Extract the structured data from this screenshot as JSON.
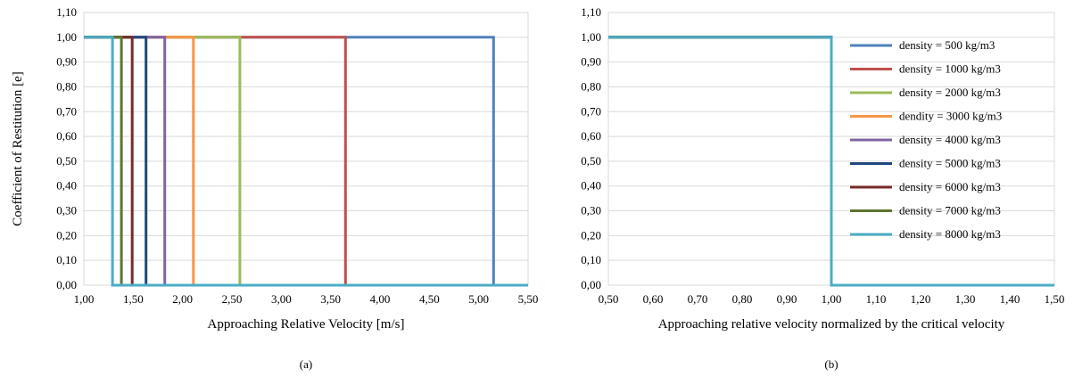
{
  "chart_data": [
    {
      "type": "line",
      "panel_label": "(a)",
      "xlabel": "Approaching Relative Velocity [m/s]",
      "ylabel": "Coefficient of Restitution [e]",
      "xlim": [
        1.0,
        5.5
      ],
      "ylim": [
        0.0,
        1.1
      ],
      "xticks": [
        "1,00",
        "1,50",
        "2,00",
        "2,50",
        "3,00",
        "3,50",
        "4,00",
        "4,50",
        "5,00",
        "5,50"
      ],
      "yticks": [
        "0,00",
        "0,10",
        "0,20",
        "0,30",
        "0,40",
        "0,50",
        "0,60",
        "0,70",
        "0,80",
        "0,90",
        "1,00",
        "1,10"
      ],
      "grid": "horizontal",
      "legend": "none",
      "series": [
        {
          "name": "density = 500 kg/m3",
          "color": "#4f81bd",
          "x": [
            1.0,
            5.15,
            5.15,
            5.5
          ],
          "y": [
            1.0,
            1.0,
            0.0,
            0.0
          ]
        },
        {
          "name": "density = 1000 kg/m3",
          "color": "#c0504d",
          "x": [
            1.0,
            3.65,
            3.65,
            5.5
          ],
          "y": [
            1.0,
            1.0,
            0.0,
            0.0
          ]
        },
        {
          "name": "density = 2000 kg/m3",
          "color": "#9bbb59",
          "x": [
            1.0,
            2.58,
            2.58,
            5.5
          ],
          "y": [
            1.0,
            1.0,
            0.0,
            0.0
          ]
        },
        {
          "name": "dendity = 3000 kg/m3",
          "color": "#f79646",
          "x": [
            1.0,
            2.11,
            2.11,
            5.5
          ],
          "y": [
            1.0,
            1.0,
            0.0,
            0.0
          ]
        },
        {
          "name": "density = 4000 kg/m3",
          "color": "#8064a2",
          "x": [
            1.0,
            1.82,
            1.82,
            5.5
          ],
          "y": [
            1.0,
            1.0,
            0.0,
            0.0
          ]
        },
        {
          "name": "density = 5000 kg/m3",
          "color": "#1f497d",
          "x": [
            1.0,
            1.63,
            1.63,
            5.5
          ],
          "y": [
            1.0,
            1.0,
            0.0,
            0.0
          ]
        },
        {
          "name": "density = 6000 kg/m3",
          "color": "#772c2a",
          "x": [
            1.0,
            1.49,
            1.49,
            5.5
          ],
          "y": [
            1.0,
            1.0,
            0.0,
            0.0
          ]
        },
        {
          "name": "density = 7000 kg/m3",
          "color": "#5f7530",
          "x": [
            1.0,
            1.38,
            1.38,
            5.5
          ],
          "y": [
            1.0,
            1.0,
            0.0,
            0.0
          ]
        },
        {
          "name": "density = 8000 kg/m3",
          "color": "#4bacc6",
          "x": [
            1.0,
            1.29,
            1.29,
            5.5
          ],
          "y": [
            1.0,
            1.0,
            0.0,
            0.0
          ]
        }
      ]
    },
    {
      "type": "line",
      "panel_label": "(b)",
      "xlabel": "Approaching relative velocity normalized by the critical velocity",
      "ylabel": "",
      "xlim": [
        0.5,
        1.5
      ],
      "ylim": [
        0.0,
        1.1
      ],
      "xticks": [
        "0,50",
        "0,60",
        "0,70",
        "0,80",
        "0,90",
        "1,00",
        "1,10",
        "1,20",
        "1,30",
        "1,40",
        "1,50"
      ],
      "yticks": [
        "0,00",
        "0,10",
        "0,20",
        "0,30",
        "0,40",
        "0,50",
        "0,60",
        "0,70",
        "0,80",
        "0,90",
        "1,00",
        "1,10"
      ],
      "grid": "horizontal",
      "legend": "right",
      "series": [
        {
          "name": "density = 500 kg/m3",
          "color": "#4f81bd",
          "x": [
            0.5,
            1.0,
            1.0,
            1.5
          ],
          "y": [
            1.0,
            1.0,
            0.0,
            0.0
          ]
        },
        {
          "name": "density = 1000 kg/m3",
          "color": "#c0504d",
          "x": [
            0.5,
            1.0,
            1.0,
            1.5
          ],
          "y": [
            1.0,
            1.0,
            0.0,
            0.0
          ]
        },
        {
          "name": "density = 2000 kg/m3",
          "color": "#9bbb59",
          "x": [
            0.5,
            1.0,
            1.0,
            1.5
          ],
          "y": [
            1.0,
            1.0,
            0.0,
            0.0
          ]
        },
        {
          "name": "dendity = 3000 kg/m3",
          "color": "#f79646",
          "x": [
            0.5,
            1.0,
            1.0,
            1.5
          ],
          "y": [
            1.0,
            1.0,
            0.0,
            0.0
          ]
        },
        {
          "name": "density = 4000 kg/m3",
          "color": "#8064a2",
          "x": [
            0.5,
            1.0,
            1.0,
            1.5
          ],
          "y": [
            1.0,
            1.0,
            0.0,
            0.0
          ]
        },
        {
          "name": "density = 5000 kg/m3",
          "color": "#1f497d",
          "x": [
            0.5,
            1.0,
            1.0,
            1.5
          ],
          "y": [
            1.0,
            1.0,
            0.0,
            0.0
          ]
        },
        {
          "name": "density = 6000 kg/m3",
          "color": "#772c2a",
          "x": [
            0.5,
            1.0,
            1.0,
            1.5
          ],
          "y": [
            1.0,
            1.0,
            0.0,
            0.0
          ]
        },
        {
          "name": "density = 7000 kg/m3",
          "color": "#5f7530",
          "x": [
            0.5,
            1.0,
            1.0,
            1.5
          ],
          "y": [
            1.0,
            1.0,
            0.0,
            0.0
          ]
        },
        {
          "name": "density = 8000 kg/m3",
          "color": "#4bacc6",
          "x": [
            0.5,
            1.0,
            1.0,
            1.5
          ],
          "y": [
            1.0,
            1.0,
            0.0,
            0.0
          ]
        }
      ]
    }
  ]
}
